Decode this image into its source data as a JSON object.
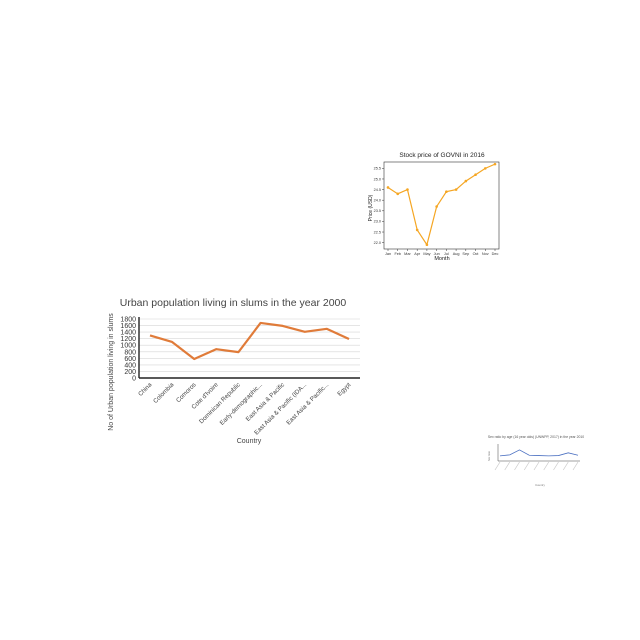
{
  "chart_data": [
    {
      "id": "stock",
      "type": "line",
      "title": "Stock price of GOVNI in 2016",
      "xlabel": "Month",
      "ylabel": "Price (USD)",
      "categories": [
        "Jan",
        "Feb",
        "Mar",
        "Apr",
        "May",
        "Jun",
        "Jul",
        "Aug",
        "Sep",
        "Oct",
        "Nov",
        "Dec"
      ],
      "values": [
        24.6,
        24.3,
        24.5,
        22.6,
        21.9,
        23.7,
        24.4,
        24.5,
        24.9,
        25.2,
        25.5,
        25.7
      ],
      "ylim": [
        21.7,
        25.8
      ],
      "yticks": [
        "25.5",
        "25.0",
        "24.5",
        "24.0",
        "23.5",
        "23.0",
        "22.5",
        "22.0"
      ],
      "grid": false,
      "line_color": "#f5a623"
    },
    {
      "id": "slums",
      "type": "line",
      "title": "Urban population living in slums in the year 2000",
      "xlabel": "Country",
      "ylabel": "No of Urban population living in slums",
      "categories": [
        "China",
        "Colombia",
        "Comoros",
        "Cote d'Ivoire",
        "Dominican Republic",
        "Early-demographic...",
        "East Asia & Pacific",
        "East Asia & Pacific (IDA...",
        "East Asia & Pacific...",
        "Egypt"
      ],
      "values": [
        1300,
        1100,
        580,
        880,
        790,
        1680,
        1590,
        1410,
        1500,
        1190
      ],
      "ylim": [
        0,
        1800
      ],
      "yticks": [
        "1800",
        "1600",
        "1400",
        "1200",
        "1000",
        "800",
        "600",
        "400",
        "200",
        "0"
      ],
      "grid": true,
      "line_color": "#e07b39"
    },
    {
      "id": "sex",
      "type": "line",
      "title": "Sex ratio by age (16 year olds) (UNWPP, 2017) in the year 2010",
      "xlabel": "Country",
      "ylabel": "Sex ratio",
      "categories": [
        "",
        "",
        "",
        "",
        "",
        "",
        "",
        "",
        ""
      ],
      "values": [
        3,
        3.6,
        6.5,
        3.4,
        3.2,
        3,
        3.2,
        4.8,
        3.4
      ],
      "ylim": [
        0,
        10
      ],
      "grid": false,
      "line_color": "#4a6fc1"
    }
  ]
}
